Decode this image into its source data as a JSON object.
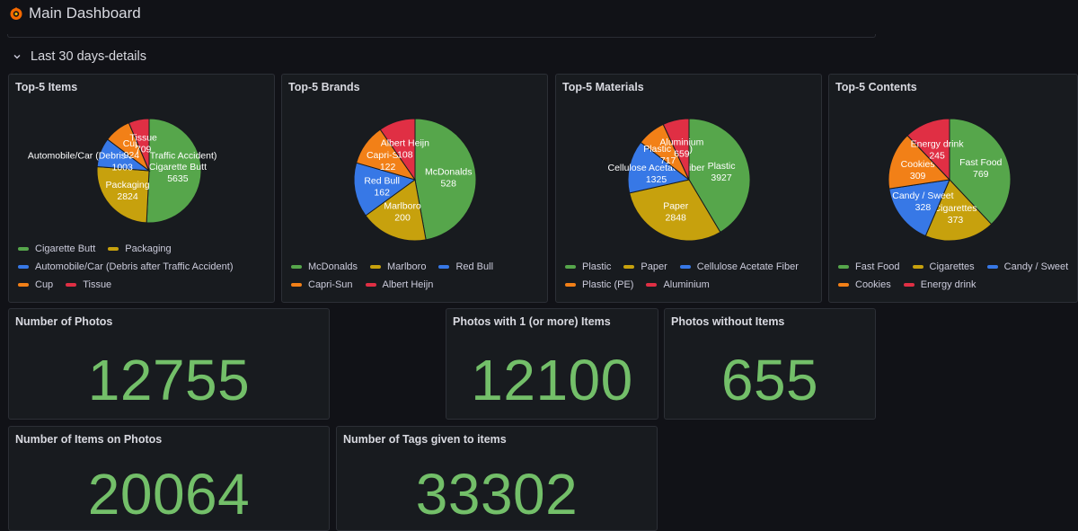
{
  "header": {
    "title": "Main Dashboard",
    "logo_icon": "grafana-logo-icon"
  },
  "row": {
    "title": "Last 30 days-details"
  },
  "colors": {
    "green": "#56a64b",
    "yellow": "#c7a10d",
    "blue": "#3778e6",
    "orange": "#f28017",
    "red": "#e02f44",
    "stat": "#73bf69"
  },
  "pies": [
    {
      "title": "Top-5 Items",
      "items": [
        {
          "label": "Cigarette Butt",
          "value": 5635,
          "color": "#56a64b"
        },
        {
          "label": "Packaging",
          "value": 2824,
          "color": "#c7a10d"
        },
        {
          "label": "Automobile/Car (Debris after Traffic Accident)",
          "value": 1003,
          "color": "#3778e6"
        },
        {
          "label": "Cup",
          "value": 924,
          "color": "#f28017"
        },
        {
          "label": "Tissue",
          "value": 709,
          "color": "#e02f44"
        }
      ]
    },
    {
      "title": "Top-5 Brands",
      "items": [
        {
          "label": "McDonalds",
          "value": 528,
          "color": "#56a64b"
        },
        {
          "label": "Marlboro",
          "value": 200,
          "color": "#c7a10d"
        },
        {
          "label": "Red Bull",
          "value": 162,
          "color": "#3778e6"
        },
        {
          "label": "Capri-Sun",
          "value": 122,
          "color": "#f28017"
        },
        {
          "label": "Albert Heijn",
          "value": 108,
          "color": "#e02f44"
        }
      ]
    },
    {
      "title": "Top-5 Materials",
      "items": [
        {
          "label": "Plastic",
          "value": 3927,
          "color": "#56a64b"
        },
        {
          "label": "Paper",
          "value": 2848,
          "color": "#c7a10d"
        },
        {
          "label": "Cellulose Acetate Fiber",
          "value": 1325,
          "color": "#3778e6"
        },
        {
          "label": "Plastic (PE)",
          "value": 717,
          "color": "#f28017"
        },
        {
          "label": "Aluminium",
          "value": 659,
          "color": "#e02f44"
        }
      ]
    },
    {
      "title": "Top-5 Contents",
      "items": [
        {
          "label": "Fast Food",
          "value": 769,
          "color": "#56a64b"
        },
        {
          "label": "Cigarettes",
          "value": 373,
          "color": "#c7a10d"
        },
        {
          "label": "Candy / Sweet",
          "value": 328,
          "color": "#3778e6"
        },
        {
          "label": "Cookies",
          "value": 309,
          "color": "#f28017"
        },
        {
          "label": "Energy drink",
          "value": 245,
          "color": "#e02f44"
        }
      ]
    }
  ],
  "stats": {
    "photos": {
      "title": "Number of Photos",
      "value": "12755"
    },
    "photos_with_items": {
      "title": "Photos with 1 (or more) Items",
      "value": "12100"
    },
    "photos_without_items": {
      "title": "Photos without Items",
      "value": "655"
    },
    "items_on_photos": {
      "title": "Number of Items on Photos",
      "value": "20064"
    },
    "tags": {
      "title": "Number of Tags given to items",
      "value": "33302"
    }
  }
}
